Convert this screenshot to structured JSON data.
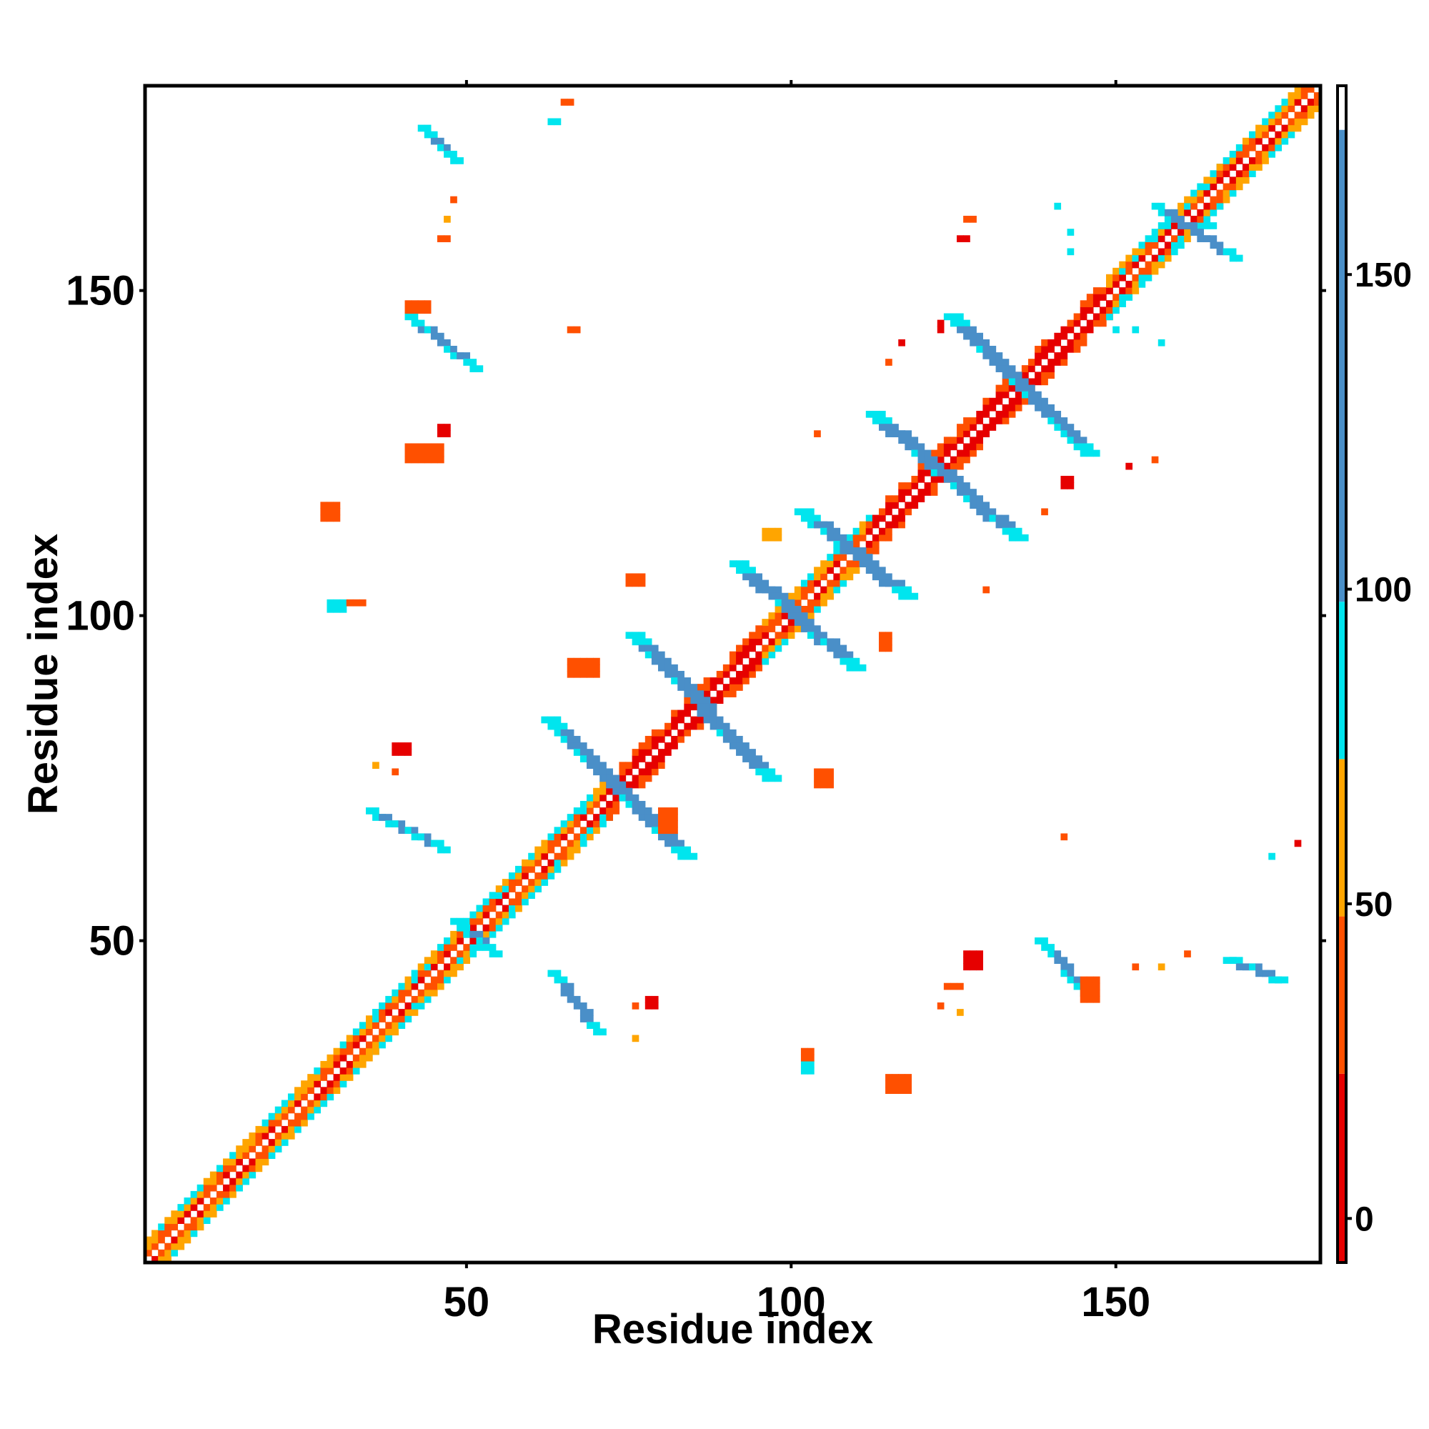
{
  "chart_data": {
    "type": "heatmap",
    "title": "",
    "xlabel": "Residue index",
    "ylabel": "Residue index",
    "xlim": [
      1,
      181
    ],
    "ylim": [
      1,
      181
    ],
    "x_ticks": [
      50,
      100,
      150
    ],
    "y_ticks": [
      50,
      100,
      150
    ],
    "grid": false,
    "colorbar": {
      "min": -7,
      "max": 180,
      "ticks": [
        0,
        50,
        100,
        150
      ],
      "bands": [
        {
          "from": -7,
          "to": 23,
          "color": "#e60000"
        },
        {
          "from": 23,
          "to": 48,
          "color": "#ff5000"
        },
        {
          "from": 48,
          "to": 73,
          "color": "#ffa500"
        },
        {
          "from": 73,
          "to": 98,
          "color": "#00e5ee"
        },
        {
          "from": 98,
          "to": 173,
          "color": "#4a8fc8"
        },
        {
          "from": 173,
          "to": 180,
          "color": "#ffffff"
        }
      ]
    },
    "colors": {
      "red": "#e60000",
      "orange_red": "#ff5000",
      "orange": "#ffa500",
      "cyan": "#00e5ee",
      "steel_blue": "#4a8fc8"
    },
    "cells_note": "contact map: value per (i, j) residue pair; diagonal band plus off-diagonal beta-sheet contacts",
    "diagonal": {
      "from": 1,
      "to": 181
    },
    "diag_segments": [
      {
        "from": 1,
        "to": 36,
        "mode": "mixed"
      },
      {
        "from": 36,
        "to": 58,
        "mode": "mixed_cyan"
      },
      {
        "from": 58,
        "to": 72,
        "mode": "mixed_cyan"
      },
      {
        "from": 72,
        "to": 86,
        "mode": "red"
      },
      {
        "from": 86,
        "to": 96,
        "mode": "red"
      },
      {
        "from": 96,
        "to": 112,
        "mode": "mixed"
      },
      {
        "from": 112,
        "to": 136,
        "mode": "red"
      },
      {
        "from": 136,
        "to": 149,
        "mode": "red"
      },
      {
        "from": 149,
        "to": 166,
        "mode": "mixed_cyan"
      },
      {
        "from": 166,
        "to": 181,
        "mode": "mixed"
      }
    ],
    "strands": [
      {
        "x1": 62,
        "y1": 84,
        "x2": 83,
        "y2": 63,
        "w": 3
      },
      {
        "x1": 75,
        "y1": 97,
        "x2": 96,
        "y2": 75,
        "w": 3
      },
      {
        "x1": 91,
        "y1": 108,
        "x2": 109,
        "y2": 92,
        "w": 3
      },
      {
        "x1": 101,
        "y1": 116,
        "x2": 117,
        "y2": 103,
        "w": 3
      },
      {
        "x1": 112,
        "y1": 131,
        "x2": 134,
        "y2": 112,
        "w": 3
      },
      {
        "x1": 124,
        "y1": 146,
        "x2": 145,
        "y2": 125,
        "w": 3
      },
      {
        "x1": 156,
        "y1": 163,
        "x2": 168,
        "y2": 155,
        "w": 2
      },
      {
        "x1": 41,
        "y1": 146,
        "x2": 51,
        "y2": 138,
        "w": 2
      },
      {
        "x1": 43,
        "y1": 175,
        "x2": 48,
        "y2": 170,
        "w": 2
      },
      {
        "x1": 35,
        "y1": 70,
        "x2": 46,
        "y2": 64,
        "w": 2
      },
      {
        "x1": 63,
        "y1": 45,
        "x2": 70,
        "y2": 36,
        "w": 2
      },
      {
        "x1": 138,
        "y1": 50,
        "x2": 145,
        "y2": 42,
        "w": 2
      },
      {
        "x1": 167,
        "y1": 47,
        "x2": 175,
        "y2": 44,
        "w": 2
      },
      {
        "x1": 48,
        "y1": 53,
        "x2": 54,
        "y2": 48,
        "w": 2
      }
    ],
    "blobs": [
      {
        "x": 65,
        "y": 179,
        "w": 2,
        "h": 1,
        "c": "orange_red"
      },
      {
        "x": 63,
        "y": 176,
        "w": 2,
        "h": 1,
        "c": "cyan"
      },
      {
        "x": 48,
        "y": 164,
        "w": 1,
        "h": 1,
        "c": "orange_red"
      },
      {
        "x": 47,
        "y": 161,
        "w": 1,
        "h": 1,
        "c": "orange"
      },
      {
        "x": 46,
        "y": 158,
        "w": 2,
        "h": 1,
        "c": "orange_red"
      },
      {
        "x": 41,
        "y": 148,
        "w": 4,
        "h": 2,
        "c": "orange_red"
      },
      {
        "x": 66,
        "y": 144,
        "w": 2,
        "h": 1,
        "c": "orange_red"
      },
      {
        "x": 41,
        "y": 126,
        "w": 6,
        "h": 3,
        "c": "orange_red"
      },
      {
        "x": 46,
        "y": 129,
        "w": 2,
        "h": 2,
        "c": "red"
      },
      {
        "x": 28,
        "y": 117,
        "w": 3,
        "h": 3,
        "c": "orange_red"
      },
      {
        "x": 29,
        "y": 102,
        "w": 3,
        "h": 2,
        "c": "cyan"
      },
      {
        "x": 32,
        "y": 102,
        "w": 3,
        "h": 1,
        "c": "orange_red"
      },
      {
        "x": 75,
        "y": 106,
        "w": 3,
        "h": 2,
        "c": "orange_red"
      },
      {
        "x": 66,
        "y": 93,
        "w": 5,
        "h": 3,
        "c": "orange_red"
      },
      {
        "x": 39,
        "y": 80,
        "w": 3,
        "h": 2,
        "c": "red"
      },
      {
        "x": 36,
        "y": 77,
        "w": 1,
        "h": 1,
        "c": "orange"
      },
      {
        "x": 39,
        "y": 76,
        "w": 1,
        "h": 1,
        "c": "orange_red"
      },
      {
        "x": 80,
        "y": 70,
        "w": 3,
        "h": 4,
        "c": "orange_red"
      },
      {
        "x": 104,
        "y": 76,
        "w": 3,
        "h": 3,
        "c": "orange_red"
      },
      {
        "x": 96,
        "y": 113,
        "w": 3,
        "h": 2,
        "c": "orange"
      },
      {
        "x": 114,
        "y": 97,
        "w": 2,
        "h": 3,
        "c": "orange_red"
      },
      {
        "x": 104,
        "y": 128,
        "w": 1,
        "h": 1,
        "c": "orange_red"
      },
      {
        "x": 115,
        "y": 139,
        "w": 1,
        "h": 1,
        "c": "orange_red"
      },
      {
        "x": 117,
        "y": 142,
        "w": 1,
        "h": 1,
        "c": "red"
      },
      {
        "x": 123,
        "y": 145,
        "w": 1,
        "h": 2,
        "c": "red"
      },
      {
        "x": 126,
        "y": 158,
        "w": 2,
        "h": 1,
        "c": "red"
      },
      {
        "x": 127,
        "y": 161,
        "w": 2,
        "h": 1,
        "c": "orange_red"
      },
      {
        "x": 142,
        "y": 121,
        "w": 2,
        "h": 2,
        "c": "red"
      },
      {
        "x": 139,
        "y": 116,
        "w": 1,
        "h": 1,
        "c": "orange_red"
      },
      {
        "x": 152,
        "y": 123,
        "w": 1,
        "h": 1,
        "c": "red"
      },
      {
        "x": 156,
        "y": 124,
        "w": 1,
        "h": 1,
        "c": "orange_red"
      },
      {
        "x": 130,
        "y": 104,
        "w": 1,
        "h": 1,
        "c": "orange_red"
      },
      {
        "x": 142,
        "y": 66,
        "w": 1,
        "h": 1,
        "c": "orange_red"
      },
      {
        "x": 174,
        "y": 63,
        "w": 1,
        "h": 1,
        "c": "cyan"
      },
      {
        "x": 178,
        "y": 65,
        "w": 1,
        "h": 1,
        "c": "red"
      },
      {
        "x": 127,
        "y": 48,
        "w": 3,
        "h": 3,
        "c": "red"
      },
      {
        "x": 124,
        "y": 43,
        "w": 3,
        "h": 1,
        "c": "orange_red"
      },
      {
        "x": 123,
        "y": 40,
        "w": 1,
        "h": 1,
        "c": "orange_red"
      },
      {
        "x": 126,
        "y": 39,
        "w": 1,
        "h": 1,
        "c": "orange"
      },
      {
        "x": 145,
        "y": 44,
        "w": 3,
        "h": 4,
        "c": "orange_red"
      },
      {
        "x": 153,
        "y": 46,
        "w": 1,
        "h": 1,
        "c": "orange_red"
      },
      {
        "x": 157,
        "y": 46,
        "w": 1,
        "h": 1,
        "c": "orange"
      },
      {
        "x": 161,
        "y": 48,
        "w": 1,
        "h": 1,
        "c": "orange_red"
      },
      {
        "x": 102,
        "y": 31,
        "w": 2,
        "h": 2,
        "c": "cyan"
      },
      {
        "x": 102,
        "y": 33,
        "w": 2,
        "h": 2,
        "c": "orange_red"
      },
      {
        "x": 115,
        "y": 29,
        "w": 4,
        "h": 3,
        "c": "orange_red"
      },
      {
        "x": 78,
        "y": 41,
        "w": 2,
        "h": 2,
        "c": "red"
      },
      {
        "x": 76,
        "y": 40,
        "w": 1,
        "h": 1,
        "c": "orange_red"
      },
      {
        "x": 76,
        "y": 35,
        "w": 1,
        "h": 1,
        "c": "orange"
      },
      {
        "x": 150,
        "y": 144,
        "w": 1,
        "h": 1,
        "c": "cyan"
      },
      {
        "x": 153,
        "y": 144,
        "w": 1,
        "h": 1,
        "c": "cyan"
      },
      {
        "x": 157,
        "y": 142,
        "w": 1,
        "h": 1,
        "c": "cyan"
      },
      {
        "x": 141,
        "y": 163,
        "w": 1,
        "h": 1,
        "c": "cyan"
      },
      {
        "x": 143,
        "y": 159,
        "w": 1,
        "h": 1,
        "c": "cyan"
      },
      {
        "x": 143,
        "y": 156,
        "w": 1,
        "h": 1,
        "c": "cyan"
      },
      {
        "x": 164,
        "y": 160,
        "w": 2,
        "h": 1,
        "c": "cyan"
      }
    ]
  }
}
